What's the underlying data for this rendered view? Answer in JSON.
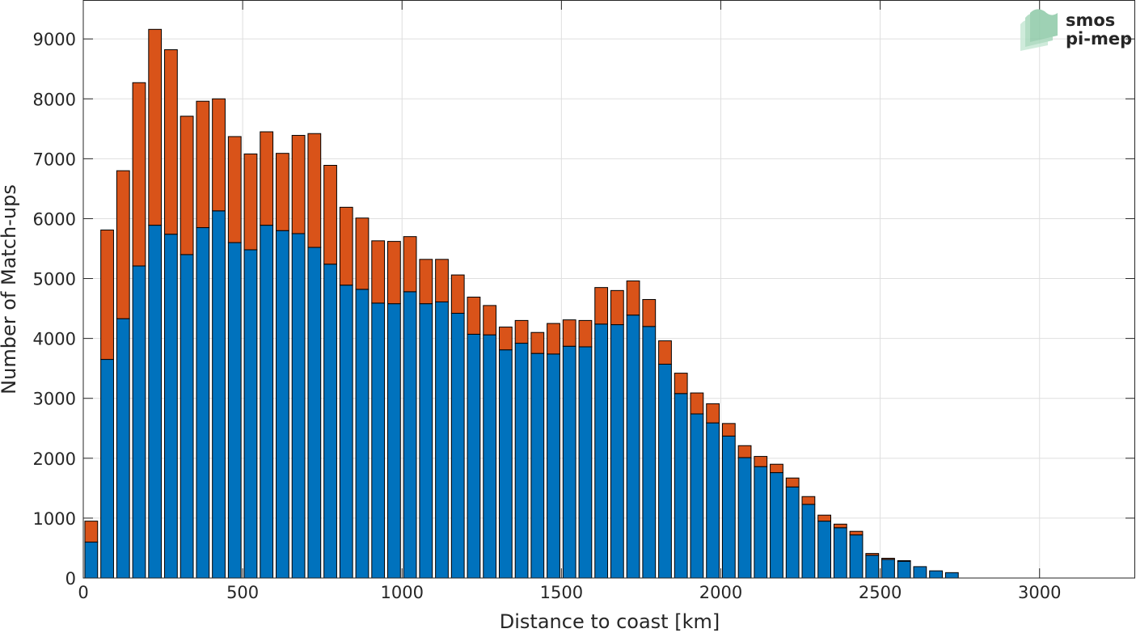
{
  "logo": {
    "line1": "smos",
    "line2": "pi-mep",
    "colors": {
      "text": "#8ec9a8",
      "mark": "#a7d8bc"
    }
  },
  "chart_data": {
    "type": "bar",
    "stacked": true,
    "xlabel": "Distance to coast [km]",
    "ylabel": "Number of Match-ups",
    "xlim": [
      0,
      3300
    ],
    "ylim": [
      0,
      9650
    ],
    "xticks": [
      0,
      500,
      1000,
      1500,
      2000,
      2500,
      3000
    ],
    "yticks": [
      0,
      1000,
      2000,
      3000,
      4000,
      5000,
      6000,
      7000,
      8000,
      9000
    ],
    "grid": true,
    "bin_width": 50,
    "x": [
      25,
      75,
      125,
      175,
      225,
      275,
      325,
      375,
      425,
      475,
      525,
      575,
      625,
      675,
      725,
      775,
      825,
      875,
      925,
      975,
      1025,
      1075,
      1125,
      1175,
      1225,
      1275,
      1325,
      1375,
      1425,
      1475,
      1525,
      1575,
      1625,
      1675,
      1725,
      1775,
      1825,
      1875,
      1925,
      1975,
      2025,
      2075,
      2125,
      2175,
      2225,
      2275,
      2325,
      2375,
      2425,
      2475,
      2525,
      2575,
      2625,
      2675,
      2725
    ],
    "series": [
      {
        "color": "#0072bd",
        "values": [
          600,
          3650,
          4330,
          5210,
          5890,
          5740,
          5400,
          5850,
          6130,
          5600,
          5480,
          5890,
          5800,
          5750,
          5520,
          5240,
          4890,
          4820,
          4590,
          4580,
          4780,
          4580,
          4610,
          4420,
          4070,
          4060,
          3810,
          3920,
          3750,
          3740,
          3870,
          3860,
          4240,
          4230,
          4390,
          4200,
          3570,
          3080,
          2740,
          2590,
          2370,
          2010,
          1860,
          1760,
          1520,
          1230,
          950,
          840,
          720,
          380,
          310,
          280,
          190,
          120,
          90
        ]
      },
      {
        "color": "#d95319",
        "values": [
          350,
          2160,
          2470,
          3060,
          3270,
          3080,
          2310,
          2110,
          1870,
          1770,
          1600,
          1560,
          1290,
          1640,
          1900,
          1650,
          1300,
          1190,
          1040,
          1040,
          920,
          740,
          710,
          640,
          620,
          490,
          380,
          380,
          350,
          510,
          440,
          440,
          610,
          570,
          570,
          450,
          390,
          340,
          350,
          320,
          210,
          200,
          170,
          140,
          150,
          130,
          100,
          60,
          60,
          30,
          20,
          10,
          0,
          0,
          0
        ]
      }
    ]
  }
}
